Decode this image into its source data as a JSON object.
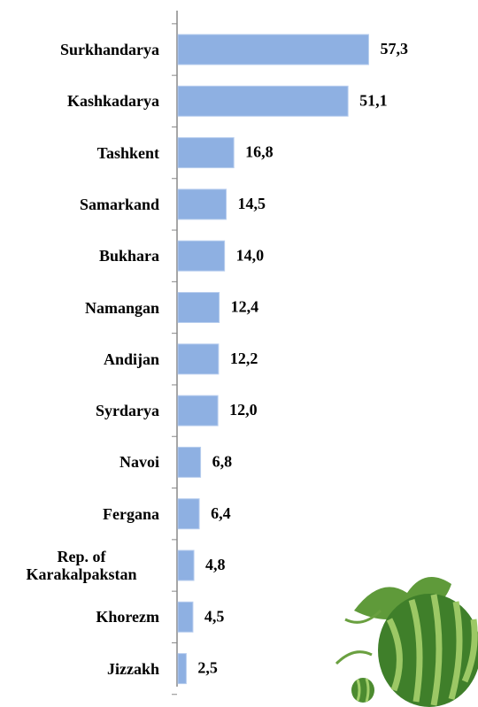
{
  "chart_data": {
    "type": "bar",
    "orientation": "horizontal",
    "categories": [
      "Surkhandarya",
      "Kashkadarya",
      "Tashkent",
      "Samarkand",
      "Bukhara",
      "Namangan",
      "Andijan",
      "Syrdarya",
      "Navoi",
      "Fergana",
      "Rep. of Karakalpakstan",
      "Khorezm",
      "Jizzakh"
    ],
    "values": [
      57.3,
      51.1,
      16.8,
      14.5,
      14.0,
      12.4,
      12.2,
      12.0,
      6.8,
      6.4,
      4.8,
      4.5,
      2.5
    ],
    "value_labels": [
      "57,3",
      "51,1",
      "16,8",
      "14,5",
      "14,0",
      "12,4",
      "12,2",
      "12,0",
      "6,8",
      "6,4",
      "4,8",
      "4,5",
      "2,5"
    ],
    "color": "#8eb0e2"
  }
}
